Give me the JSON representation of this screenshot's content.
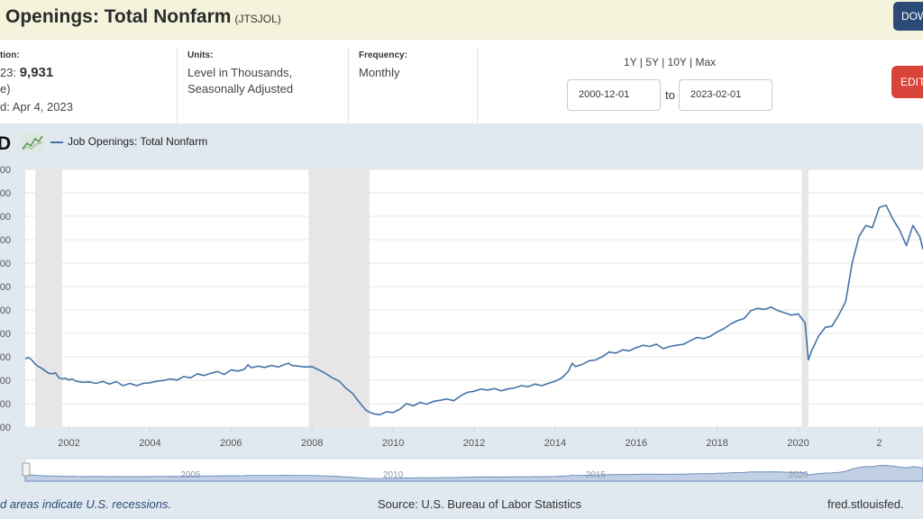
{
  "header": {
    "title": "Openings: Total Nonfarm",
    "series_id": "(JTSJOL)",
    "download_label": "DOW"
  },
  "meta": {
    "observation": {
      "label": "tion:",
      "date_fragment": "23:",
      "value": "9,931",
      "unit_fragment": "e)",
      "updated": "d: Apr 4, 2023"
    },
    "units": {
      "label": "Units:",
      "line1": "Level in Thousands,",
      "line2": "Seasonally Adjusted"
    },
    "frequency": {
      "label": "Frequency:",
      "value": "Monthly"
    }
  },
  "controls": {
    "range_1y": "1Y",
    "range_5y": "5Y",
    "range_10y": "10Y",
    "range_max": "Max",
    "start_date": "2000-12-01",
    "to_label": "to",
    "end_date": "2023-02-01",
    "edit_label": "EDIT"
  },
  "legend": {
    "logo_text": "D",
    "series_name": "Job Openings: Total Nonfarm",
    "color": "#4572a7"
  },
  "footer": {
    "recession_note": "d areas indicate U.S. recessions.",
    "source": "Source: U.S. Bureau of Labor Statistics",
    "site": "fred.stlouisfed."
  },
  "chart_data": {
    "type": "line",
    "title": "",
    "xlabel": "",
    "ylabel": "",
    "x_ticks": [
      "2002",
      "2004",
      "2006",
      "2008",
      "2010",
      "2012",
      "2014",
      "2016",
      "2018",
      "2020",
      "2"
    ],
    "y_tick_labels": [
      "00",
      "00",
      "00",
      "00",
      "00",
      "00",
      "00",
      "00",
      "00",
      "00",
      "00",
      "00"
    ],
    "navigator_ticks": [
      "2005",
      "2010",
      "2015",
      "2020"
    ],
    "grid": true,
    "recession_shading_color": "#e6e6e6",
    "recessions": [
      [
        "2001-03",
        "2001-11"
      ],
      [
        "2007-12",
        "2009-06"
      ],
      [
        "2020-02",
        "2020-04"
      ]
    ],
    "series": [
      {
        "name": "Job Openings: Total Nonfarm",
        "color": "#4572a7",
        "points": [
          [
            2000.92,
            5050
          ],
          [
            2001.0,
            5100
          ],
          [
            2001.08,
            5000
          ],
          [
            2001.17,
            4800
          ],
          [
            2001.25,
            4700
          ],
          [
            2001.33,
            4620
          ],
          [
            2001.42,
            4500
          ],
          [
            2001.5,
            4400
          ],
          [
            2001.58,
            4380
          ],
          [
            2001.67,
            4420
          ],
          [
            2001.75,
            4200
          ],
          [
            2001.83,
            4150
          ],
          [
            2001.92,
            4180
          ],
          [
            2002.0,
            4100
          ],
          [
            2002.08,
            4150
          ],
          [
            2002.17,
            4050
          ],
          [
            2002.33,
            4000
          ],
          [
            2002.5,
            4020
          ],
          [
            2002.67,
            3950
          ],
          [
            2002.83,
            4040
          ],
          [
            2003.0,
            3920
          ],
          [
            2003.17,
            4030
          ],
          [
            2003.33,
            3850
          ],
          [
            2003.5,
            3950
          ],
          [
            2003.67,
            3850
          ],
          [
            2003.83,
            3950
          ],
          [
            2004.0,
            3980
          ],
          [
            2004.17,
            4050
          ],
          [
            2004.33,
            4080
          ],
          [
            2004.5,
            4150
          ],
          [
            2004.67,
            4100
          ],
          [
            2004.83,
            4250
          ],
          [
            2005.0,
            4200
          ],
          [
            2005.17,
            4380
          ],
          [
            2005.33,
            4300
          ],
          [
            2005.5,
            4400
          ],
          [
            2005.67,
            4480
          ],
          [
            2005.83,
            4350
          ],
          [
            2006.0,
            4550
          ],
          [
            2006.17,
            4500
          ],
          [
            2006.33,
            4580
          ],
          [
            2006.42,
            4780
          ],
          [
            2006.5,
            4650
          ],
          [
            2006.67,
            4720
          ],
          [
            2006.83,
            4660
          ],
          [
            2007.0,
            4750
          ],
          [
            2007.17,
            4680
          ],
          [
            2007.33,
            4800
          ],
          [
            2007.42,
            4850
          ],
          [
            2007.5,
            4750
          ],
          [
            2007.67,
            4720
          ],
          [
            2007.83,
            4680
          ],
          [
            2008.0,
            4700
          ],
          [
            2008.17,
            4550
          ],
          [
            2008.33,
            4400
          ],
          [
            2008.5,
            4200
          ],
          [
            2008.67,
            4050
          ],
          [
            2008.83,
            3750
          ],
          [
            2009.0,
            3500
          ],
          [
            2009.17,
            3100
          ],
          [
            2009.33,
            2750
          ],
          [
            2009.5,
            2600
          ],
          [
            2009.67,
            2550
          ],
          [
            2009.83,
            2680
          ],
          [
            2010.0,
            2650
          ],
          [
            2010.17,
            2800
          ],
          [
            2010.33,
            3050
          ],
          [
            2010.5,
            2950
          ],
          [
            2010.67,
            3100
          ],
          [
            2010.83,
            3020
          ],
          [
            2011.0,
            3150
          ],
          [
            2011.17,
            3200
          ],
          [
            2011.33,
            3250
          ],
          [
            2011.5,
            3180
          ],
          [
            2011.67,
            3400
          ],
          [
            2011.83,
            3550
          ],
          [
            2012.0,
            3600
          ],
          [
            2012.17,
            3700
          ],
          [
            2012.33,
            3650
          ],
          [
            2012.5,
            3720
          ],
          [
            2012.67,
            3620
          ],
          [
            2012.83,
            3700
          ],
          [
            2013.0,
            3750
          ],
          [
            2013.17,
            3850
          ],
          [
            2013.33,
            3800
          ],
          [
            2013.5,
            3920
          ],
          [
            2013.67,
            3850
          ],
          [
            2013.83,
            3950
          ],
          [
            2014.0,
            4050
          ],
          [
            2014.17,
            4200
          ],
          [
            2014.33,
            4500
          ],
          [
            2014.42,
            4850
          ],
          [
            2014.5,
            4700
          ],
          [
            2014.67,
            4800
          ],
          [
            2014.83,
            4950
          ],
          [
            2015.0,
            5000
          ],
          [
            2015.17,
            5150
          ],
          [
            2015.33,
            5350
          ],
          [
            2015.5,
            5300
          ],
          [
            2015.67,
            5450
          ],
          [
            2015.83,
            5400
          ],
          [
            2016.0,
            5550
          ],
          [
            2016.17,
            5650
          ],
          [
            2016.33,
            5600
          ],
          [
            2016.5,
            5700
          ],
          [
            2016.67,
            5500
          ],
          [
            2016.83,
            5600
          ],
          [
            2017.0,
            5650
          ],
          [
            2017.17,
            5700
          ],
          [
            2017.33,
            5850
          ],
          [
            2017.5,
            6000
          ],
          [
            2017.67,
            5950
          ],
          [
            2017.83,
            6050
          ],
          [
            2018.0,
            6250
          ],
          [
            2018.17,
            6400
          ],
          [
            2018.33,
            6600
          ],
          [
            2018.5,
            6750
          ],
          [
            2018.67,
            6850
          ],
          [
            2018.83,
            7200
          ],
          [
            2019.0,
            7300
          ],
          [
            2019.17,
            7250
          ],
          [
            2019.33,
            7350
          ],
          [
            2019.5,
            7200
          ],
          [
            2019.67,
            7100
          ],
          [
            2019.83,
            7000
          ],
          [
            2020.0,
            7050
          ],
          [
            2020.17,
            6650
          ],
          [
            2020.25,
            5000
          ],
          [
            2020.33,
            5400
          ],
          [
            2020.5,
            6050
          ],
          [
            2020.67,
            6450
          ],
          [
            2020.83,
            6500
          ],
          [
            2021.0,
            7000
          ],
          [
            2021.17,
            7600
          ],
          [
            2021.33,
            9300
          ],
          [
            2021.5,
            10500
          ],
          [
            2021.67,
            11000
          ],
          [
            2021.83,
            10900
          ],
          [
            2022.0,
            11800
          ],
          [
            2022.17,
            11900
          ],
          [
            2022.33,
            11300
          ],
          [
            2022.5,
            10800
          ],
          [
            2022.67,
            10100
          ],
          [
            2022.83,
            11000
          ],
          [
            2023.0,
            10500
          ],
          [
            2023.08,
            9931
          ]
        ]
      }
    ]
  }
}
